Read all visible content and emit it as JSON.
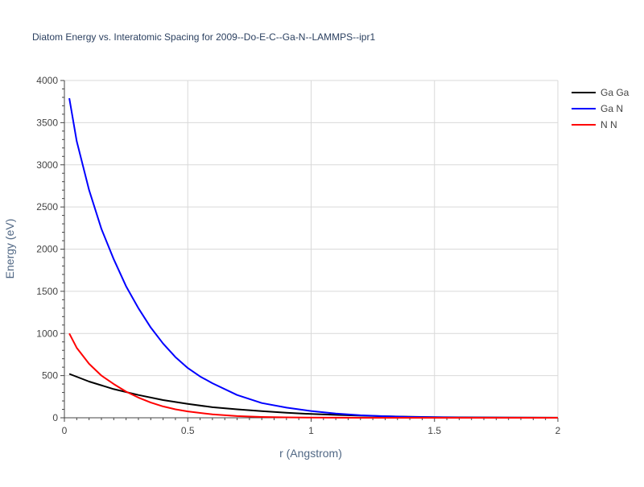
{
  "chart_data": {
    "type": "line",
    "title": "Diatom Energy vs. Interatomic Spacing for 2009--Do-E-C--Ga-N--LAMMPS--ipr1",
    "xlabel": "r (Angstrom)",
    "ylabel": "Energy (eV)",
    "xlim": [
      0,
      2
    ],
    "ylim": [
      0,
      4000
    ],
    "x_ticks": [
      0,
      0.5,
      1,
      1.5,
      2
    ],
    "x_tick_labels": [
      "0",
      "0.5",
      "1",
      "1.5",
      "2"
    ],
    "y_ticks": [
      0,
      500,
      1000,
      1500,
      2000,
      2500,
      3000,
      3500,
      4000
    ],
    "y_tick_labels": [
      "0",
      "500",
      "1000",
      "1500",
      "2000",
      "2500",
      "3000",
      "3500",
      "4000"
    ],
    "grid": true,
    "legend_position": "top-right",
    "series": [
      {
        "name": "Ga Ga",
        "color": "#000000",
        "x": [
          0.02,
          0.1,
          0.2,
          0.3,
          0.4,
          0.5,
          0.6,
          0.7,
          0.8,
          0.9,
          1.0,
          1.1,
          1.2,
          1.3,
          1.4,
          1.5,
          1.6,
          1.8,
          2.0
        ],
        "y": [
          520,
          430,
          340,
          270,
          210,
          165,
          125,
          100,
          78,
          60,
          45,
          34,
          25,
          18,
          12,
          8,
          5,
          2,
          1
        ]
      },
      {
        "name": "Ga N",
        "color": "#0000ff",
        "x": [
          0.02,
          0.05,
          0.1,
          0.15,
          0.2,
          0.25,
          0.3,
          0.35,
          0.4,
          0.45,
          0.5,
          0.55,
          0.6,
          0.7,
          0.8,
          0.9,
          1.0,
          1.1,
          1.2,
          1.3,
          1.4,
          1.5,
          1.6,
          1.8,
          2.0
        ],
        "y": [
          3790,
          3280,
          2700,
          2240,
          1880,
          1560,
          1300,
          1070,
          880,
          720,
          590,
          490,
          410,
          270,
          175,
          120,
          80,
          50,
          30,
          18,
          10,
          6,
          3,
          1,
          0
        ]
      },
      {
        "name": "N N",
        "color": "#ff0000",
        "x": [
          0.02,
          0.05,
          0.1,
          0.15,
          0.2,
          0.25,
          0.3,
          0.35,
          0.4,
          0.45,
          0.5,
          0.6,
          0.7,
          0.8,
          0.9,
          1.0,
          1.2,
          1.5,
          2.0
        ],
        "y": [
          1000,
          830,
          640,
          500,
          400,
          310,
          240,
          180,
          135,
          100,
          75,
          40,
          20,
          10,
          5,
          2,
          0,
          0,
          0
        ]
      }
    ]
  }
}
